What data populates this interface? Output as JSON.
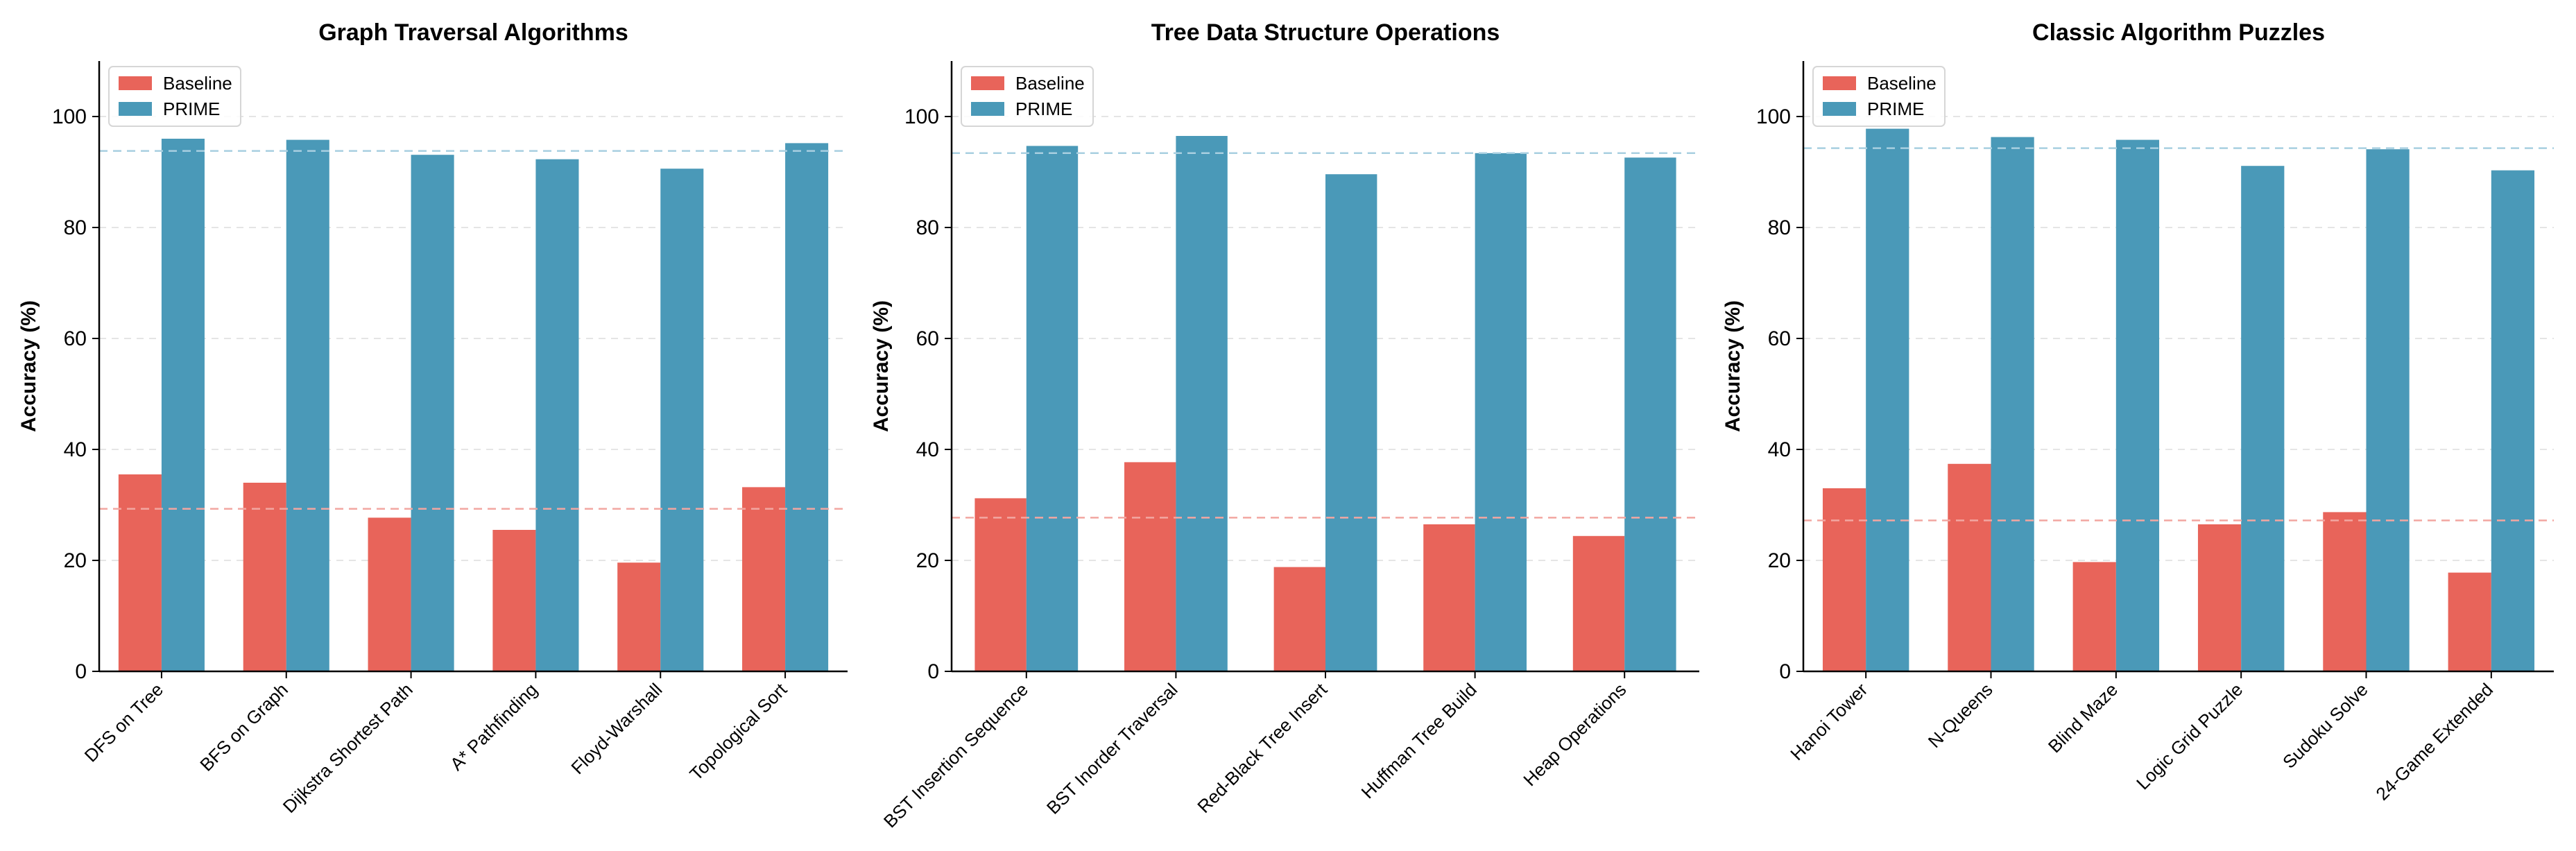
{
  "colors": {
    "baseline": "#e8645a",
    "prime": "#4a99b8",
    "baseline_ref": "#f2a6a1",
    "prime_ref": "#a8cfe0",
    "grid": "#e5e5e5"
  },
  "chart_data": [
    {
      "type": "bar",
      "title": "Graph Traversal Algorithms",
      "xlabel": "",
      "ylabel": "Accuracy (%)",
      "ylim": [
        0,
        110
      ],
      "yticks": [
        0,
        20,
        40,
        60,
        80,
        100
      ],
      "grid": true,
      "legend": "top-left",
      "categories": [
        "DFS on Tree",
        "BFS on Graph",
        "Dijkstra Shortest Path",
        "A* Pathfinding",
        "Floyd-Warshall",
        "Topological Sort"
      ],
      "series": [
        {
          "name": "Baseline",
          "values": [
            35.5,
            34.0,
            27.7,
            25.5,
            19.6,
            33.2
          ]
        },
        {
          "name": "PRIME",
          "values": [
            96.0,
            95.8,
            93.1,
            92.3,
            90.6,
            95.2
          ]
        }
      ],
      "reference_lines": {
        "baseline_mean": 29.3,
        "prime_mean": 93.8
      }
    },
    {
      "type": "bar",
      "title": "Tree Data Structure Operations",
      "xlabel": "",
      "ylabel": "Accuracy (%)",
      "ylim": [
        0,
        110
      ],
      "yticks": [
        0,
        20,
        40,
        60,
        80,
        100
      ],
      "grid": true,
      "legend": "top-left",
      "categories": [
        "BST Insertion Sequence",
        "BST Inorder Traversal",
        "Red-Black Tree Insert",
        "Huffman Tree Build",
        "Heap Operations"
      ],
      "series": [
        {
          "name": "Baseline",
          "values": [
            31.2,
            37.7,
            18.8,
            26.5,
            24.4
          ]
        },
        {
          "name": "PRIME",
          "values": [
            94.7,
            96.5,
            89.6,
            93.4,
            92.6
          ]
        }
      ],
      "reference_lines": {
        "baseline_mean": 27.7,
        "prime_mean": 93.4
      }
    },
    {
      "type": "bar",
      "title": "Classic Algorithm Puzzles",
      "xlabel": "",
      "ylabel": "Accuracy (%)",
      "ylim": [
        0,
        110
      ],
      "yticks": [
        0,
        20,
        40,
        60,
        80,
        100
      ],
      "grid": true,
      "legend": "top-left",
      "categories": [
        "Hanoi Tower",
        "N-Queens",
        "Blind Maze",
        "Logic Grid Puzzle",
        "Sudoku Solve",
        "24-Game Extended"
      ],
      "series": [
        {
          "name": "Baseline",
          "values": [
            33.0,
            37.4,
            19.7,
            26.5,
            28.7,
            17.8
          ]
        },
        {
          "name": "PRIME",
          "values": [
            97.8,
            96.3,
            95.8,
            91.1,
            94.1,
            90.3
          ]
        }
      ],
      "reference_lines": {
        "baseline_mean": 27.2,
        "prime_mean": 94.3
      }
    }
  ]
}
